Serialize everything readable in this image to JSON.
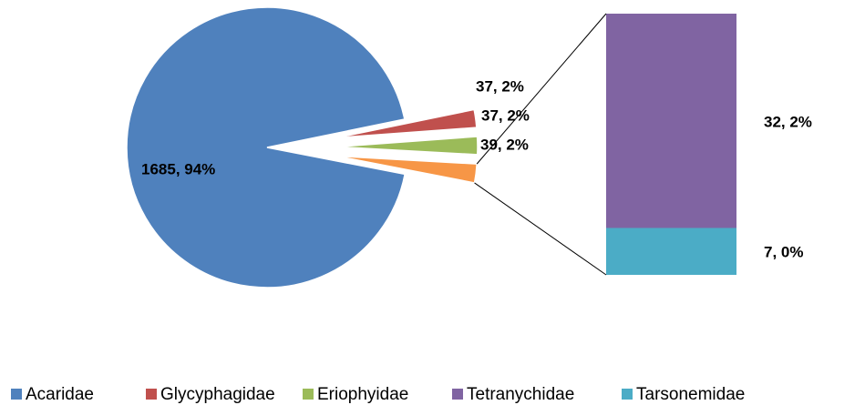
{
  "chart_data": {
    "type": "bar-of-pie",
    "categories": [
      "Acaridae",
      "Glycyphagidae",
      "Eriophyidae",
      null
    ],
    "values": [
      1685,
      37,
      37,
      39
    ],
    "value_labels": [
      "1685, 94%",
      "37, 2%",
      "37, 2%",
      "39, 2%"
    ],
    "colors": [
      "#4f81bd",
      "#c0504d",
      "#9bbb59",
      "#f79646"
    ],
    "bar": {
      "categories": [
        "Tetranychidae",
        "Tarsonemidae"
      ],
      "values": [
        32,
        7
      ],
      "value_labels": [
        "32, 2%",
        "7, 0%"
      ],
      "colors": [
        "#8064a2",
        "#4bacc6"
      ]
    }
  }
}
